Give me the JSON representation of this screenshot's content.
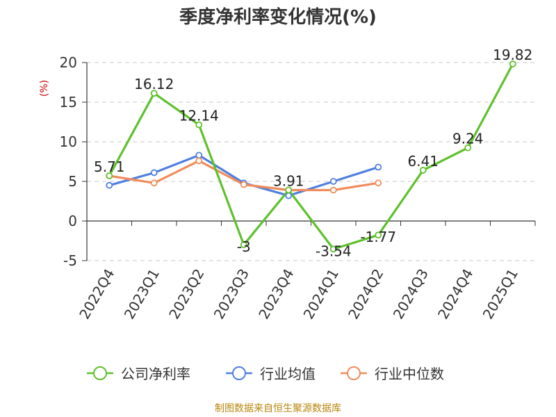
{
  "title": "季度净利率变化情况(%)",
  "source": "制图数据来自恒生聚源数据库",
  "chart_data": {
    "type": "line",
    "ylabel": "(%)",
    "ylim": [
      -5,
      20
    ],
    "yticks": [
      -5,
      0,
      5,
      10,
      15,
      20
    ],
    "categories": [
      "2022Q4",
      "2023Q1",
      "2023Q2",
      "2023Q3",
      "2023Q4",
      "2024Q1",
      "2024Q2",
      "2024Q3",
      "2024Q4",
      "2025Q1"
    ],
    "grid": true,
    "legend_position": "bottom",
    "series": [
      {
        "name": "公司净利率",
        "color": "#5ec12c",
        "values": [
          5.71,
          16.12,
          12.14,
          -3,
          3.91,
          -3.54,
          -1.77,
          6.41,
          9.24,
          19.82
        ],
        "labels": [
          "5.71",
          "16.12",
          "12.14",
          "-3",
          "3.91",
          "-3.54",
          "-1.77",
          "6.41",
          "9.24",
          "19.82"
        ]
      },
      {
        "name": "行业均值",
        "color": "#4f7fe0",
        "values": [
          4.5,
          6.1,
          8.3,
          4.8,
          3.2,
          5.0,
          6.8,
          null,
          null,
          null
        ]
      },
      {
        "name": "行业中位数",
        "color": "#f08c5a",
        "values": [
          5.7,
          4.8,
          7.6,
          4.6,
          3.9,
          3.9,
          4.8,
          null,
          null,
          null
        ]
      }
    ]
  }
}
